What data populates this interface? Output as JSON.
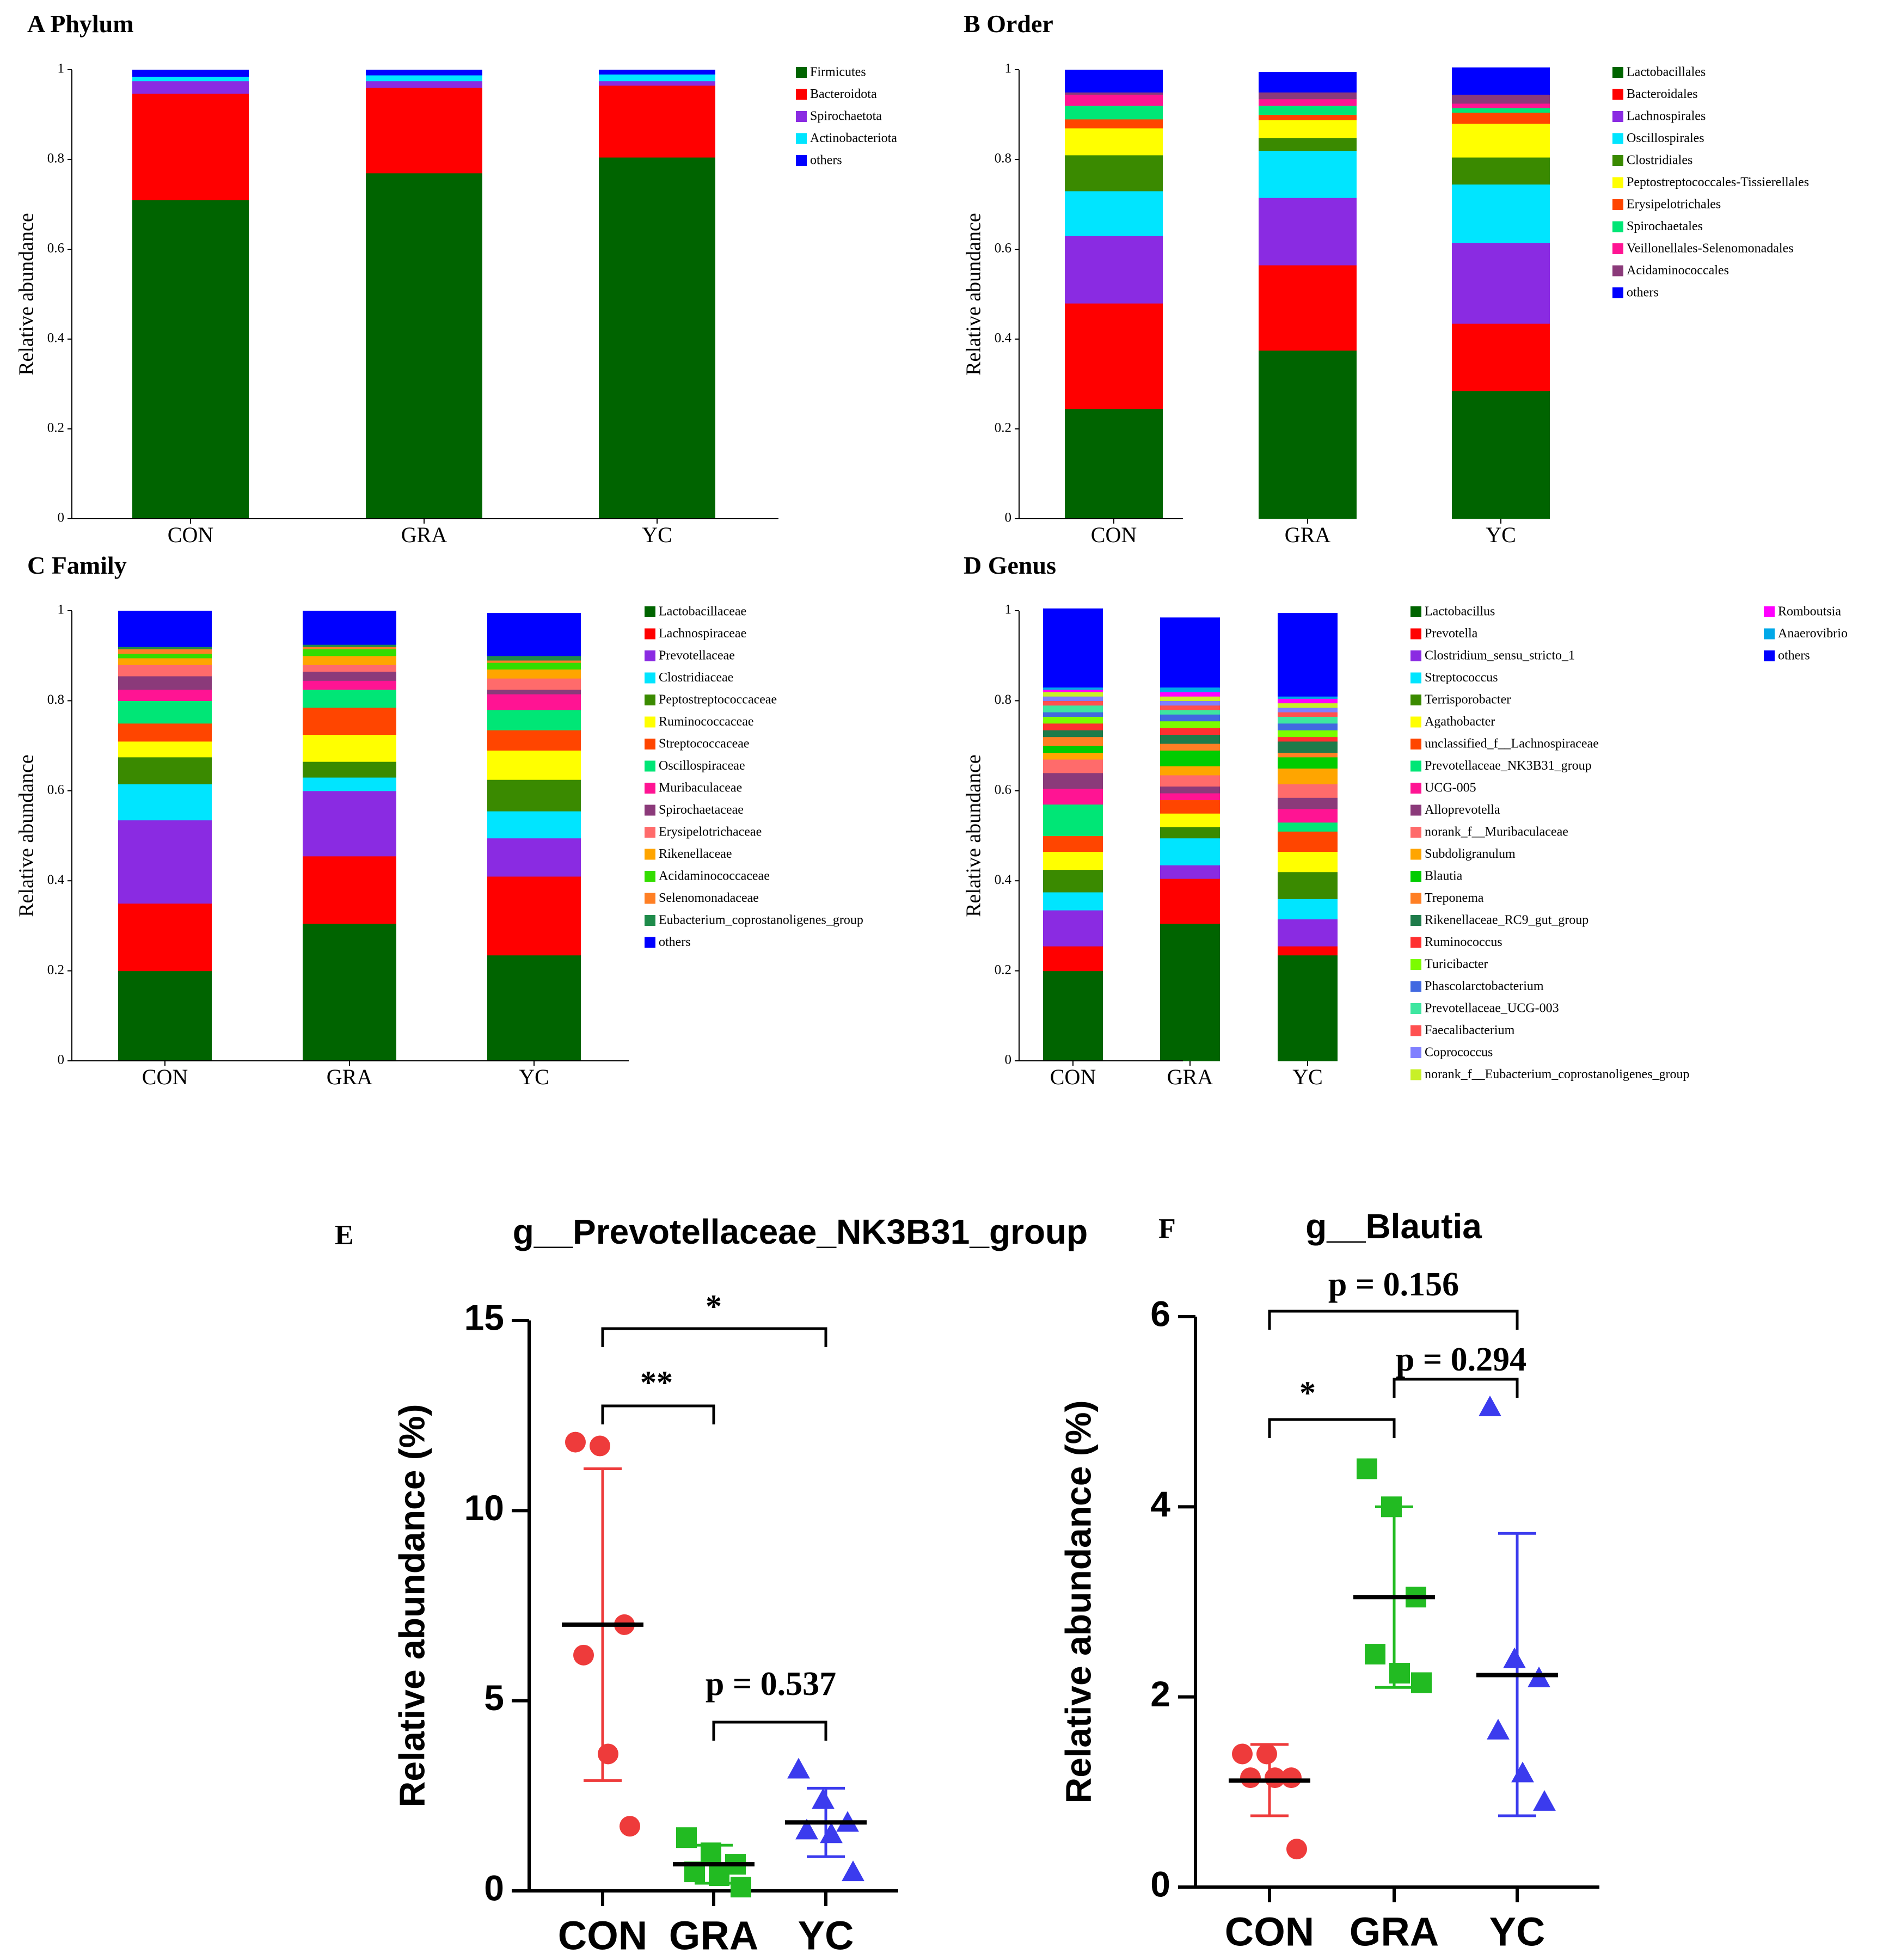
{
  "figure_title": "",
  "chart_data": [
    {
      "id": "A",
      "type": "bar",
      "stacked": true,
      "panel_label": "A",
      "title": "Phylum",
      "ylabel": "Relative abundance",
      "ylim": [
        0,
        1
      ],
      "yticks": [
        "0",
        "0.2",
        "0.4",
        "0.6",
        "0.8",
        "1"
      ],
      "categories": [
        "CON",
        "GRA",
        "YC"
      ],
      "legend_position": "right",
      "series": [
        {
          "name": "Firmicutes",
          "color": "#006400",
          "values": [
            0.71,
            0.77,
            0.805
          ]
        },
        {
          "name": "Bacteroidota",
          "color": "#ff0000",
          "values": [
            0.237,
            0.19,
            0.16
          ]
        },
        {
          "name": "Spirochaetota",
          "color": "#8a2be2",
          "values": [
            0.028,
            0.015,
            0.01
          ]
        },
        {
          "name": "Actinobacteriota",
          "color": "#00e5ff",
          "values": [
            0.01,
            0.013,
            0.015
          ]
        },
        {
          "name": "others",
          "color": "#0000ff",
          "values": [
            0.015,
            0.012,
            0.01
          ]
        }
      ]
    },
    {
      "id": "B",
      "type": "bar",
      "stacked": true,
      "panel_label": "B",
      "title": "Order",
      "ylabel": "Relative abundance",
      "ylim": [
        0,
        1
      ],
      "yticks": [
        "0",
        "0.2",
        "0.4",
        "0.6",
        "0.8",
        "1"
      ],
      "categories": [
        "CON",
        "GRA",
        "YC"
      ],
      "legend_position": "right",
      "series": [
        {
          "name": "Lactobacillales",
          "color": "#006400",
          "values": [
            0.245,
            0.375,
            0.285
          ]
        },
        {
          "name": "Bacteroidales",
          "color": "#ff0000",
          "values": [
            0.235,
            0.19,
            0.15
          ]
        },
        {
          "name": "Lachnospirales",
          "color": "#8a2be2",
          "values": [
            0.15,
            0.15,
            0.18
          ]
        },
        {
          "name": "Oscillospirales",
          "color": "#00e5ff",
          "values": [
            0.1,
            0.105,
            0.13
          ]
        },
        {
          "name": "Clostridiales",
          "color": "#3a8a00",
          "values": [
            0.08,
            0.028,
            0.06
          ]
        },
        {
          "name": "Peptostreptococcales-Tissierellales",
          "color": "#ffff00",
          "values": [
            0.06,
            0.04,
            0.075
          ]
        },
        {
          "name": "Erysipelotrichales",
          "color": "#ff4500",
          "values": [
            0.02,
            0.012,
            0.025
          ]
        },
        {
          "name": "Spirochaetales",
          "color": "#00e676",
          "values": [
            0.03,
            0.02,
            0.01
          ]
        },
        {
          "name": "Veillonellales-Selenomonadales",
          "color": "#ff1493",
          "values": [
            0.025,
            0.015,
            0.01
          ]
        },
        {
          "name": "Acidaminococcales",
          "color": "#8b3a7a",
          "values": [
            0.005,
            0.015,
            0.02
          ]
        },
        {
          "name": "others",
          "color": "#0000ff",
          "values": [
            0.05,
            0.045,
            0.06
          ]
        }
      ]
    },
    {
      "id": "C",
      "type": "bar",
      "stacked": true,
      "panel_label": "C",
      "title": "Family",
      "ylabel": "Relative abundance",
      "ylim": [
        0,
        1
      ],
      "yticks": [
        "0",
        "0.2",
        "0.4",
        "0.6",
        "0.8",
        "1"
      ],
      "categories": [
        "CON",
        "GRA",
        "YC"
      ],
      "legend_position": "right",
      "series": [
        {
          "name": "Lactobacillaceae",
          "color": "#006400",
          "values": [
            0.2,
            0.305,
            0.235
          ]
        },
        {
          "name": "Lachnospiraceae",
          "color": "#ff0000",
          "values": [
            0.15,
            0.15,
            0.175
          ]
        },
        {
          "name": "Prevotellaceae",
          "color": "#8a2be2",
          "values": [
            0.185,
            0.145,
            0.085
          ]
        },
        {
          "name": "Clostridiaceae",
          "color": "#00e5ff",
          "values": [
            0.08,
            0.03,
            0.06
          ]
        },
        {
          "name": "Peptostreptococcaceae",
          "color": "#3a8a00",
          "values": [
            0.06,
            0.035,
            0.07
          ]
        },
        {
          "name": "Ruminococcaceae",
          "color": "#ffff00",
          "values": [
            0.035,
            0.06,
            0.065
          ]
        },
        {
          "name": "Streptococcaceae",
          "color": "#ff4500",
          "values": [
            0.04,
            0.06,
            0.045
          ]
        },
        {
          "name": "Oscillospiraceae",
          "color": "#00e676",
          "values": [
            0.05,
            0.04,
            0.045
          ]
        },
        {
          "name": "Muribaculaceae",
          "color": "#ff1493",
          "values": [
            0.025,
            0.02,
            0.035
          ]
        },
        {
          "name": "Spirochaetaceae",
          "color": "#8b3a7a",
          "values": [
            0.03,
            0.02,
            0.01
          ]
        },
        {
          "name": "Erysipelotrichaceae",
          "color": "#ff6b6b",
          "values": [
            0.025,
            0.015,
            0.025
          ]
        },
        {
          "name": "Rikenellaceae",
          "color": "#ffa500",
          "values": [
            0.015,
            0.02,
            0.02
          ]
        },
        {
          "name": "Acidaminococcaceae",
          "color": "#33dd00",
          "values": [
            0.01,
            0.015,
            0.015
          ]
        },
        {
          "name": "Selenomonadaceae",
          "color": "#ff7f24",
          "values": [
            0.01,
            0.005,
            0.005
          ]
        },
        {
          "name": "Eubacterium_coprostanoligenes_group",
          "color": "#1e8b4a",
          "values": [
            0.005,
            0.005,
            0.01
          ]
        },
        {
          "name": "others",
          "color": "#0000ff",
          "values": [
            0.08,
            0.075,
            0.095
          ]
        }
      ]
    },
    {
      "id": "D",
      "type": "bar",
      "stacked": true,
      "panel_label": "D",
      "title": "Genus",
      "ylabel": "Relative abundance",
      "ylim": [
        0,
        1
      ],
      "yticks": [
        "0",
        "0.2",
        "0.4",
        "0.6",
        "0.8",
        "1"
      ],
      "categories": [
        "CON",
        "GRA",
        "YC"
      ],
      "legend_position": "right",
      "series": [
        {
          "name": "Lactobacillus",
          "color": "#006400",
          "values": [
            0.2,
            0.305,
            0.235
          ]
        },
        {
          "name": "Prevotella",
          "color": "#ff0000",
          "values": [
            0.055,
            0.1,
            0.02
          ]
        },
        {
          "name": "Clostridium_sensu_stricto_1",
          "color": "#8a2be2",
          "values": [
            0.08,
            0.03,
            0.06
          ]
        },
        {
          "name": "Streptococcus",
          "color": "#00e5ff",
          "values": [
            0.04,
            0.06,
            0.045
          ]
        },
        {
          "name": "Terrisporobacter",
          "color": "#3a8a00",
          "values": [
            0.05,
            0.025,
            0.06
          ]
        },
        {
          "name": "Agathobacter",
          "color": "#ffff00",
          "values": [
            0.04,
            0.03,
            0.045
          ]
        },
        {
          "name": "unclassified_f__Lachnospiraceae",
          "color": "#ff4500",
          "values": [
            0.035,
            0.03,
            0.045
          ]
        },
        {
          "name": "Prevotellaceae_NK3B31_group",
          "color": "#00e676",
          "values": [
            0.07,
            0.0,
            0.02
          ]
        },
        {
          "name": "UCG-005",
          "color": "#ff1493",
          "values": [
            0.035,
            0.015,
            0.03
          ]
        },
        {
          "name": "Alloprevotella",
          "color": "#8b3a7a",
          "values": [
            0.035,
            0.015,
            0.025
          ]
        },
        {
          "name": "norank_f__Muribaculaceae",
          "color": "#ff6b6b",
          "values": [
            0.03,
            0.025,
            0.03
          ]
        },
        {
          "name": "Subdoligranulum",
          "color": "#ffa500",
          "values": [
            0.015,
            0.02,
            0.035
          ]
        },
        {
          "name": "Blautia",
          "color": "#00cc00",
          "values": [
            0.015,
            0.035,
            0.025
          ]
        },
        {
          "name": "Treponema",
          "color": "#ff7f24",
          "values": [
            0.02,
            0.015,
            0.01
          ]
        },
        {
          "name": "Rikenellaceae_RC9_gut_group",
          "color": "#1e7b4a",
          "values": [
            0.015,
            0.02,
            0.025
          ]
        },
        {
          "name": "Ruminococcus",
          "color": "#ff3030",
          "values": [
            0.015,
            0.015,
            0.01
          ]
        },
        {
          "name": "Turicibacter",
          "color": "#7cfc00",
          "values": [
            0.015,
            0.015,
            0.015
          ]
        },
        {
          "name": "Phascolarctobacterium",
          "color": "#4169e1",
          "values": [
            0.01,
            0.015,
            0.015
          ]
        },
        {
          "name": "Prevotellaceae_UCG-003",
          "color": "#3ee6a0",
          "values": [
            0.015,
            0.01,
            0.015
          ]
        },
        {
          "name": "Faecalibacterium",
          "color": "#ff5050",
          "values": [
            0.01,
            0.01,
            0.01
          ]
        },
        {
          "name": "Coprococcus",
          "color": "#8080ff",
          "values": [
            0.01,
            0.01,
            0.01
          ]
        },
        {
          "name": "norank_f__Eubacterium_coprostanoligenes_group",
          "color": "#c8f028",
          "values": [
            0.01,
            0.01,
            0.01
          ]
        },
        {
          "name": "Romboutsia",
          "color": "#ff00ff",
          "values": [
            0.005,
            0.01,
            0.01
          ]
        },
        {
          "name": "Anaerovibrio",
          "color": "#00a8e8",
          "values": [
            0.005,
            0.01,
            0.005
          ]
        },
        {
          "name": "others",
          "color": "#0000ff",
          "values": [
            0.175,
            0.155,
            0.185
          ]
        }
      ]
    },
    {
      "id": "E",
      "type": "scatter",
      "panel_label": "E",
      "title": "g__Prevotellaceae_NK3B31_group",
      "ylabel": "Relative abundance (%)",
      "ylim": [
        0,
        15
      ],
      "yticks": [
        "0",
        "5",
        "10",
        "15"
      ],
      "categories": [
        "CON",
        "GRA",
        "YC"
      ],
      "groups": [
        {
          "name": "CON",
          "marker": "circle",
          "color": "#ee3b3b",
          "points": [
            11.8,
            11.7,
            7.0,
            6.2,
            3.6,
            1.7
          ],
          "mean": 7.0,
          "sd_low": 2.9,
          "sd_high": 11.1
        },
        {
          "name": "GRA",
          "marker": "square",
          "color": "#22bb22",
          "points": [
            1.4,
            1.0,
            0.7,
            0.5,
            0.4,
            0.1
          ],
          "mean": 0.7,
          "sd_low": 0.2,
          "sd_high": 1.2
        },
        {
          "name": "YC",
          "marker": "triangle",
          "color": "#3b3bee",
          "points": [
            3.2,
            2.4,
            1.8,
            1.6,
            1.5,
            0.5
          ],
          "mean": 1.8,
          "sd_low": 0.9,
          "sd_high": 2.7
        }
      ],
      "significance": [
        {
          "from": "CON",
          "to": "YC",
          "label": "*",
          "level": 15.0
        },
        {
          "from": "CON",
          "to": "GRA",
          "label": "**",
          "level": 13.0
        },
        {
          "from": "GRA",
          "to": "YC",
          "label": "p = 0.537",
          "level": 4.4
        }
      ]
    },
    {
      "id": "F",
      "type": "scatter",
      "panel_label": "F",
      "title": "g__Blautia",
      "ylabel": "Relative abundance (%)",
      "ylim": [
        0,
        6
      ],
      "yticks": [
        "0",
        "2",
        "4",
        "6"
      ],
      "categories": [
        "CON",
        "GRA",
        "YC"
      ],
      "groups": [
        {
          "name": "CON",
          "marker": "circle",
          "color": "#ee3b3b",
          "points": [
            1.4,
            1.4,
            1.15,
            1.15,
            1.15,
            0.4
          ],
          "mean": 1.12,
          "sd_low": 0.75,
          "sd_high": 1.5
        },
        {
          "name": "GRA",
          "marker": "square",
          "color": "#22bb22",
          "points": [
            4.4,
            4.0,
            3.05,
            2.45,
            2.25,
            2.15
          ],
          "mean": 3.05,
          "sd_low": 2.1,
          "sd_high": 4.0
        },
        {
          "name": "YC",
          "marker": "triangle",
          "color": "#3b3bee",
          "points": [
            5.05,
            2.4,
            2.2,
            1.65,
            1.2,
            0.9
          ],
          "mean": 2.23,
          "sd_low": 0.75,
          "sd_high": 3.72
        }
      ],
      "significance": [
        {
          "from": "CON",
          "to": "YC",
          "label": "p = 0.156",
          "level": 6.05
        },
        {
          "from": "GRA",
          "to": "YC",
          "label": "p = 0.294",
          "level": 5.4
        },
        {
          "from": "CON",
          "to": "GRA",
          "label": "*",
          "level": 4.9
        }
      ]
    }
  ]
}
